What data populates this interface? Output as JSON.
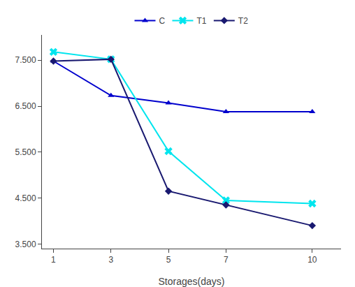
{
  "chart_data": {
    "type": "line",
    "x_label": "Storages(days)",
    "x": [
      1,
      3,
      5,
      7,
      10
    ],
    "series": [
      {
        "name": "C",
        "color": "#0000CD",
        "marker": "triangle-up",
        "line_style": "solid",
        "values": [
          7.48,
          6.73,
          6.57,
          6.38,
          6.38
        ]
      },
      {
        "name": "T1",
        "color": "#00E5EE",
        "marker": "x",
        "line_style": "solid",
        "values": [
          7.68,
          7.52,
          5.52,
          4.45,
          4.38
        ]
      },
      {
        "name": "T2",
        "color": "#191970",
        "marker": "diamond",
        "line_style": "solid",
        "values": [
          7.48,
          7.52,
          4.65,
          4.35,
          3.9
        ]
      }
    ],
    "xlim": [
      0.6,
      11.0
    ],
    "xticks": [
      1,
      3,
      5,
      7,
      10
    ],
    "ylim": [
      3.4,
      8.05
    ],
    "yticks": [
      {
        "value": 3.5,
        "label": "3.500"
      },
      {
        "value": 4.5,
        "label": "4.500"
      },
      {
        "value": 5.5,
        "label": "5.500"
      },
      {
        "value": 6.5,
        "label": "6.500"
      },
      {
        "value": 7.5,
        "label": "7.500"
      }
    ],
    "grid": false,
    "legend": "top"
  }
}
